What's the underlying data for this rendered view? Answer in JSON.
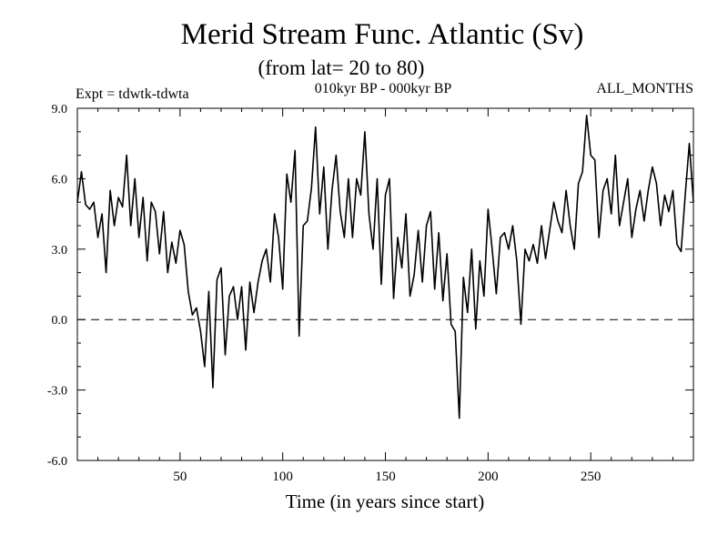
{
  "chart_data": {
    "type": "line",
    "title": "Merid Stream Func. Atlantic (Sv)",
    "subtitle": "(from lat= 20 to 80)",
    "left_note": "Expt = tdwtk-tdwta",
    "center_note": "010kyr BP - 000kyr BP",
    "right_note": "ALL_MONTHS",
    "xlabel": "Time (in years since start)",
    "ylabel": "",
    "xlim": [
      0,
      300
    ],
    "ylim": [
      -6,
      9
    ],
    "xticks": [
      50,
      100,
      150,
      200,
      250
    ],
    "xtick_labels": [
      "50",
      "100",
      "150",
      "200",
      "250"
    ],
    "yticks": [
      -6,
      -3,
      0,
      3,
      6,
      9
    ],
    "ytick_labels": [
      "-6.0",
      "-3.0",
      "0.0",
      "3.0",
      "6.0",
      "9.0"
    ],
    "reference_line": 0,
    "series": [
      {
        "name": "stream function",
        "x": [
          0,
          2,
          4,
          6,
          8,
          10,
          12,
          14,
          16,
          18,
          20,
          22,
          24,
          26,
          28,
          30,
          32,
          34,
          36,
          38,
          40,
          42,
          44,
          46,
          48,
          50,
          52,
          54,
          56,
          58,
          60,
          62,
          64,
          66,
          68,
          70,
          72,
          74,
          76,
          78,
          80,
          82,
          84,
          86,
          88,
          90,
          92,
          94,
          96,
          98,
          100,
          102,
          104,
          106,
          108,
          110,
          112,
          114,
          116,
          118,
          120,
          122,
          124,
          126,
          128,
          130,
          132,
          134,
          136,
          138,
          140,
          142,
          144,
          146,
          148,
          150,
          152,
          154,
          156,
          158,
          160,
          162,
          164,
          166,
          168,
          170,
          172,
          174,
          176,
          178,
          180,
          182,
          184,
          186,
          188,
          190,
          192,
          194,
          196,
          198,
          200,
          202,
          204,
          206,
          208,
          210,
          212,
          214,
          216,
          218,
          220,
          222,
          224,
          226,
          228,
          230,
          232,
          234,
          236,
          238,
          240,
          242,
          244,
          246,
          248,
          250,
          252,
          254,
          256,
          258,
          260,
          262,
          264,
          266,
          268,
          270,
          272,
          274,
          276,
          278,
          280,
          282,
          284,
          286,
          288,
          290,
          292,
          294,
          296,
          298,
          300
        ],
        "values": [
          5.0,
          6.3,
          4.9,
          4.7,
          5.0,
          3.5,
          4.5,
          2.0,
          5.5,
          4.0,
          5.2,
          4.8,
          7.0,
          4.0,
          6.0,
          3.5,
          5.2,
          2.5,
          5.0,
          4.6,
          2.8,
          4.6,
          2.0,
          3.3,
          2.4,
          3.8,
          3.2,
          1.2,
          0.2,
          0.5,
          -0.5,
          -2.0,
          1.2,
          -2.9,
          1.7,
          2.2,
          -1.5,
          1.0,
          1.4,
          0.0,
          1.4,
          -1.3,
          1.6,
          0.3,
          1.6,
          2.5,
          3.0,
          1.6,
          4.5,
          3.5,
          1.3,
          6.2,
          5.0,
          7.2,
          -0.7,
          4.0,
          4.2,
          5.6,
          8.2,
          4.5,
          6.5,
          3.0,
          5.5,
          7.0,
          4.6,
          3.5,
          6.0,
          3.5,
          6.0,
          5.3,
          8.0,
          4.5,
          3.0,
          6.0,
          1.5,
          5.3,
          6.0,
          0.9,
          3.5,
          2.2,
          4.5,
          1.0,
          1.9,
          3.8,
          1.6,
          4.0,
          4.6,
          1.3,
          3.7,
          0.8,
          2.8,
          -0.2,
          -0.5,
          -4.2,
          1.8,
          0.3,
          3.0,
          -0.4,
          2.5,
          1.0,
          4.7,
          3.0,
          1.1,
          3.5,
          3.7,
          3.0,
          4.0,
          2.5,
          -0.2,
          3.0,
          2.5,
          3.2,
          2.4,
          4.0,
          2.6,
          3.8,
          5.0,
          4.2,
          3.7,
          5.5,
          4.0,
          3.0,
          5.8,
          6.3,
          8.7,
          7.0,
          6.8,
          3.5,
          5.5,
          6.0,
          4.5,
          7.0,
          4.0,
          5.0,
          6.0,
          3.5,
          4.7,
          5.5,
          4.2,
          5.5,
          6.5,
          5.8,
          4.0,
          5.3,
          4.6,
          5.5,
          3.2,
          2.9,
          5.3,
          7.5,
          5.0
        ],
        "color": "#000000"
      }
    ]
  }
}
